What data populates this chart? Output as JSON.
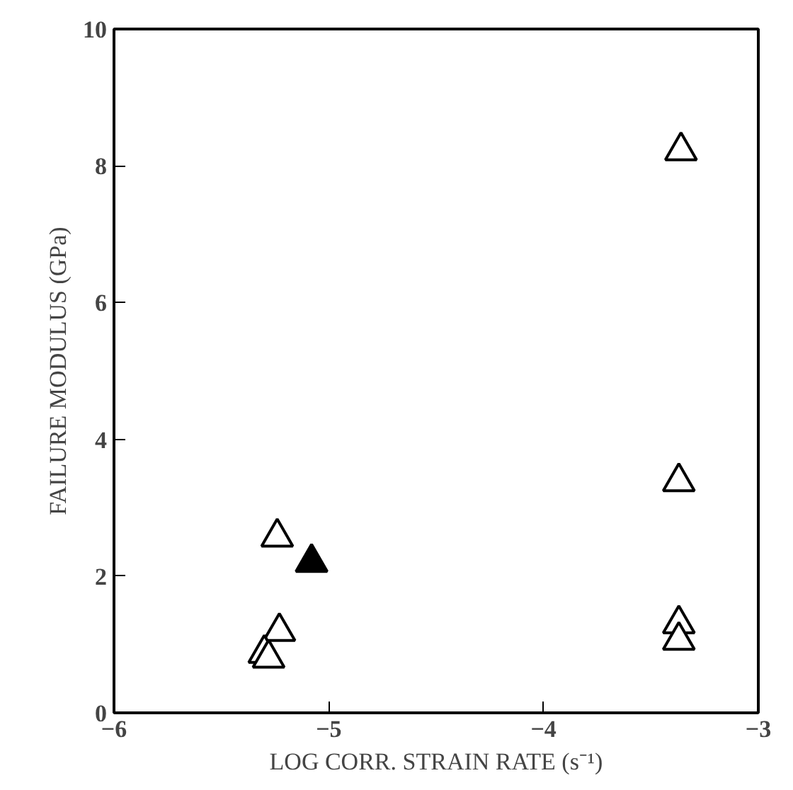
{
  "chart_data": {
    "type": "scatter",
    "xlabel": "LOG CORR. STRAIN RATE (s⁻¹)",
    "ylabel": "FAILURE MODULUS (GPa)",
    "xlim": [
      -6,
      -3
    ],
    "xticks": [
      -6,
      -5,
      -4,
      -3
    ],
    "ylim": [
      0,
      10
    ],
    "yticks": [
      0,
      2,
      4,
      6,
      8,
      10
    ],
    "marker": "triangle",
    "series": [
      {
        "color": "#000000",
        "x": [
          -5.24,
          -5.23,
          -5.3,
          -5.28,
          -3.36,
          -3.37,
          -3.37,
          -3.37
        ],
        "values": [
          2.57,
          1.19,
          0.87,
          0.8,
          8.22,
          3.38,
          1.3,
          1.06
        ]
      },
      {
        "color": "#000000",
        "x": [
          -5.08
        ],
        "values": [
          2.2
        ]
      }
    ]
  }
}
